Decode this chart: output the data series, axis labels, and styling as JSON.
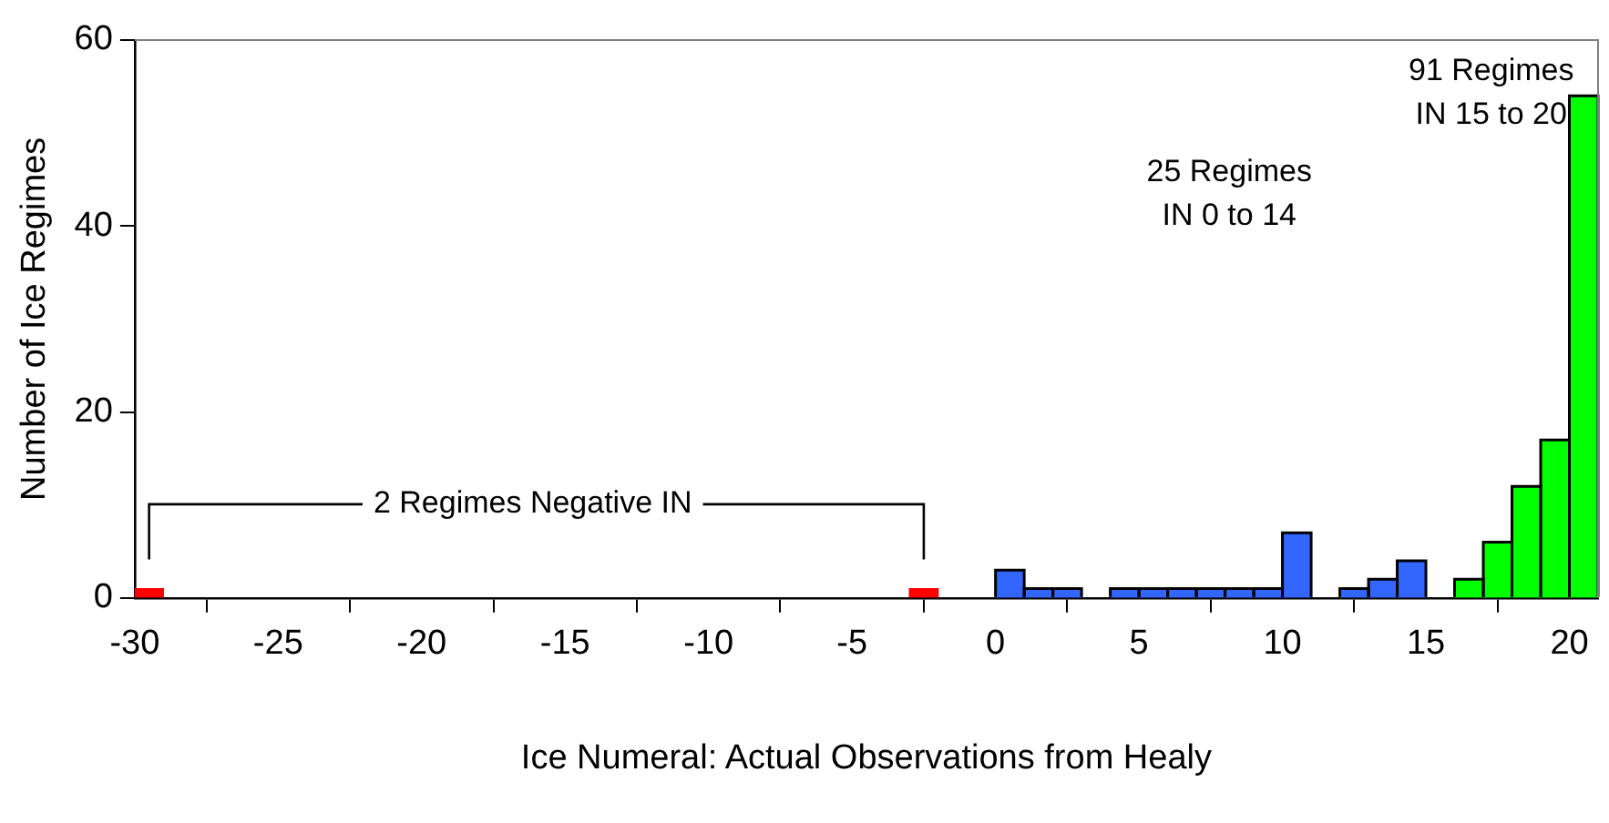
{
  "chart_data": {
    "type": "histogram",
    "xlabel": "Ice Numeral: Actual Observations from Healy",
    "ylabel": "Number of Ice Regimes",
    "bins": [
      -30,
      -29,
      -28,
      -27,
      -26,
      -25,
      -24,
      -23,
      -22,
      -21,
      -20,
      -19,
      -18,
      -17,
      -16,
      -15,
      -14,
      -13,
      -12,
      -11,
      -10,
      -9,
      -8,
      -7,
      -6,
      -5,
      -4,
      -3,
      -2,
      -1,
      0,
      1,
      2,
      3,
      4,
      5,
      6,
      7,
      8,
      9,
      10,
      11,
      12,
      13,
      14,
      15,
      16,
      17,
      18,
      19,
      20,
      21
    ],
    "values": [
      1,
      0,
      0,
      0,
      0,
      0,
      0,
      0,
      0,
      0,
      0,
      0,
      0,
      0,
      0,
      0,
      0,
      0,
      0,
      0,
      0,
      0,
      0,
      0,
      0,
      0,
      0,
      1,
      0,
      0,
      3,
      1,
      1,
      0,
      1,
      1,
      1,
      1,
      1,
      1,
      7,
      0,
      1,
      2,
      4,
      0,
      2,
      6,
      12,
      17,
      54
    ],
    "colors": [
      "#ff0000",
      null,
      null,
      null,
      null,
      null,
      null,
      null,
      null,
      null,
      null,
      null,
      null,
      null,
      null,
      null,
      null,
      null,
      null,
      null,
      null,
      null,
      null,
      null,
      null,
      null,
      null,
      "#ff0000",
      null,
      null,
      "#3366ff",
      "#3366ff",
      "#3366ff",
      null,
      "#3366ff",
      "#3366ff",
      "#3366ff",
      "#3366ff",
      "#3366ff",
      "#3366ff",
      "#3366ff",
      null,
      "#3366ff",
      "#3366ff",
      "#3366ff",
      null,
      "#00ff00",
      "#00ff00",
      "#00ff00",
      "#00ff00",
      "#00ff00"
    ],
    "xlim": [
      -30,
      21
    ],
    "xticks": [
      -30,
      -25,
      -20,
      -15,
      -10,
      -5,
      0,
      5,
      10,
      15,
      20
    ],
    "ylim": [
      0,
      60
    ],
    "yticks": [
      0,
      20,
      40,
      60
    ],
    "grid": false,
    "legend": false,
    "annotations": [
      "2 Regimes Negative IN",
      "25 Regimes\nIN 0 to 14",
      "91 Regimes\nIN 15 to 20"
    ]
  }
}
